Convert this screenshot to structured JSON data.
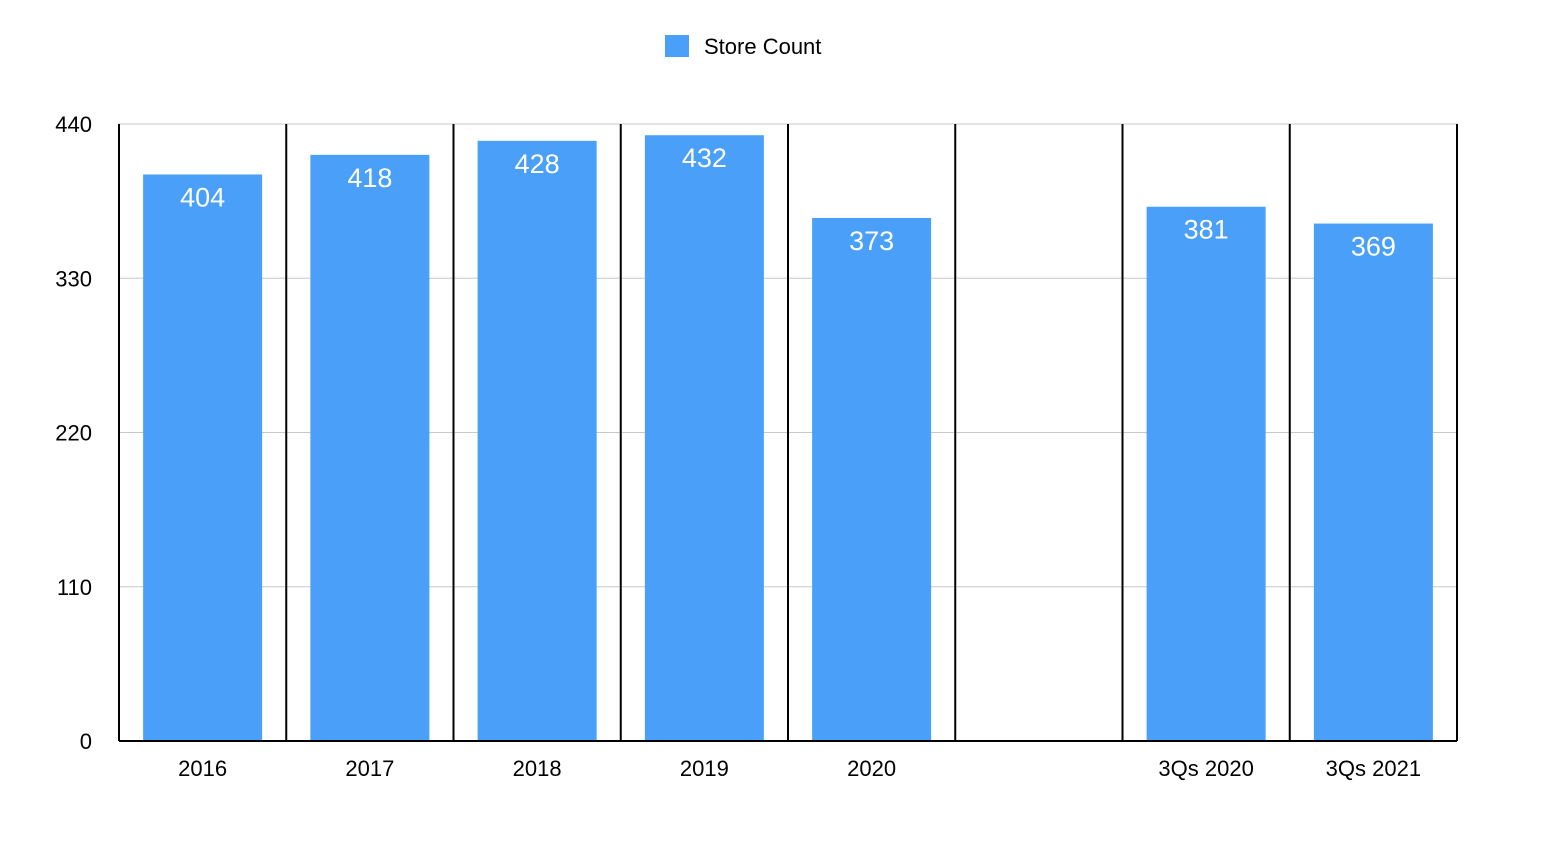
{
  "chart_data": {
    "type": "bar",
    "categories": [
      "2016",
      "2017",
      "2018",
      "2019",
      "2020",
      "",
      "3Qs 2020",
      "3Qs 2021"
    ],
    "series": [
      {
        "name": "Store Count",
        "color": "#4a9ff8",
        "values": [
          404,
          418,
          428,
          432,
          373,
          null,
          381,
          369
        ],
        "data_labels": [
          "404",
          "418",
          "428",
          "432",
          "373",
          "",
          "381",
          "369"
        ]
      }
    ],
    "title": "",
    "xlabel": "",
    "ylabel": "",
    "ylim": [
      0,
      440
    ],
    "yticks": [
      "0",
      "110",
      "220",
      "330",
      "440"
    ],
    "grid": true,
    "category_separators": true,
    "legend_position": "top-center"
  }
}
